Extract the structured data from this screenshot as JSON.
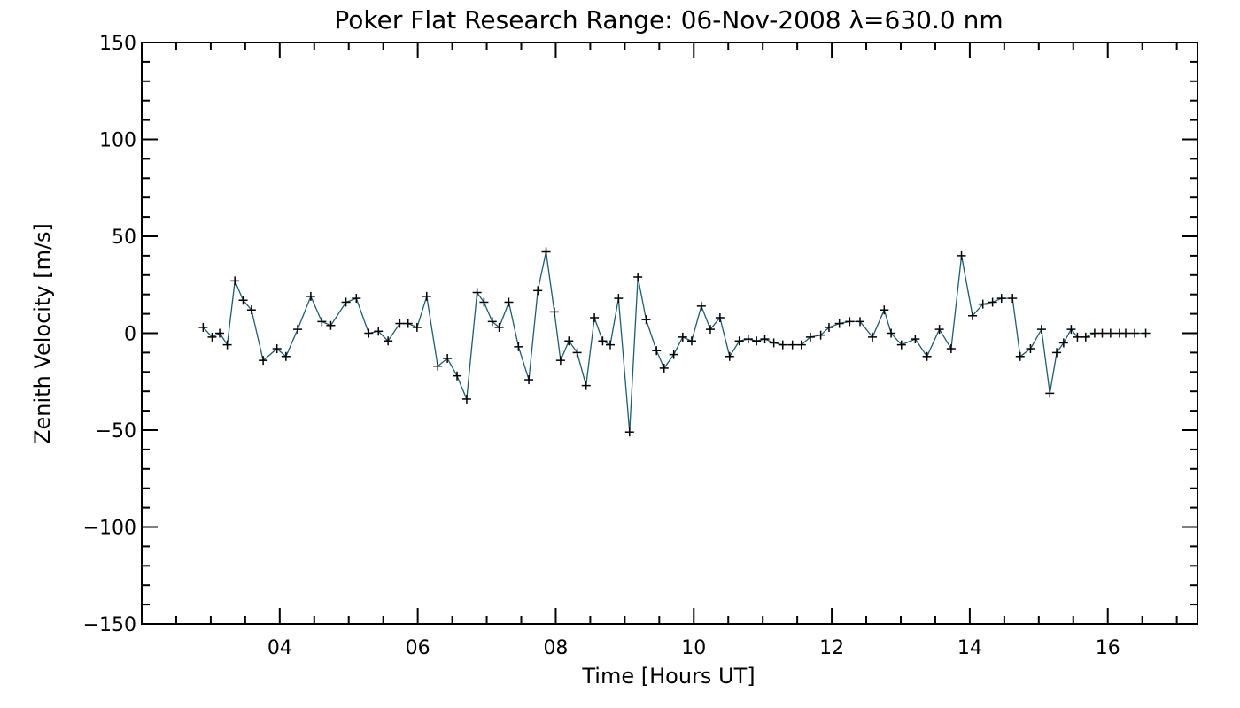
{
  "chart_data": {
    "type": "line",
    "title": "Poker Flat Research Range: 06-Nov-2008 λ=630.0 nm",
    "xlabel": "Time [Hours UT]",
    "ylabel": "Zenith Velocity [m/s]",
    "xlim": [
      2.0,
      17.3
    ],
    "ylim": [
      -150,
      150
    ],
    "x_ticks": [
      4,
      6,
      8,
      10,
      12,
      14,
      16
    ],
    "x_tick_labels": [
      "04",
      "06",
      "08",
      "10",
      "12",
      "14",
      "16"
    ],
    "y_ticks": [
      -150,
      -100,
      -50,
      0,
      50,
      100,
      150
    ],
    "y_tick_labels": [
      "−150",
      "−100",
      "−50",
      "0",
      "50",
      "100",
      "150"
    ],
    "grid": false,
    "marker": "plus",
    "colors": {
      "line": "#1f5c70",
      "marker": "#000000",
      "axes": "#000000"
    },
    "series": [
      {
        "x": [
          2.89,
          3.02,
          3.13,
          3.24,
          3.35,
          3.47,
          3.59,
          3.76,
          3.96,
          4.09,
          4.26,
          4.45,
          4.61,
          4.74,
          4.96,
          5.11,
          5.29,
          5.43,
          5.57,
          5.74,
          5.86,
          5.99,
          6.13,
          6.29,
          6.43,
          6.57,
          6.71,
          6.86,
          6.96,
          7.08,
          7.18,
          7.32,
          7.46,
          7.61,
          7.74,
          7.86,
          7.98,
          8.07,
          8.19,
          8.31,
          8.44,
          8.56,
          8.68,
          8.79,
          8.91,
          9.07,
          9.19,
          9.31,
          9.46,
          9.57,
          9.71,
          9.84,
          9.97,
          10.11,
          10.24,
          10.38,
          10.52,
          10.66,
          10.79,
          10.91,
          11.03,
          11.16,
          11.29,
          11.43,
          11.56,
          11.69,
          11.84,
          11.96,
          12.11,
          12.26,
          12.41,
          12.59,
          12.76,
          12.86,
          13.01,
          13.21,
          13.38,
          13.56,
          13.73,
          13.88,
          14.04,
          14.19,
          14.33,
          14.46,
          14.62,
          14.73,
          14.88,
          15.04,
          15.16,
          15.26,
          15.36,
          15.47,
          15.56,
          15.68,
          15.81,
          15.92,
          16.04,
          16.17,
          16.26,
          16.39,
          16.55
        ],
        "y": [
          3,
          -2,
          0,
          -6,
          27,
          17,
          12,
          -14,
          -8,
          -12,
          2,
          19,
          6,
          4,
          16,
          18,
          0,
          1,
          -4,
          5,
          5,
          3,
          19,
          -17,
          -13,
          -22,
          -34,
          21,
          16,
          6,
          3,
          16,
          -7,
          -24,
          22,
          42,
          11,
          -14,
          -4,
          -10,
          -27,
          8,
          -4,
          -6,
          18,
          -51,
          29,
          7,
          -9,
          -18,
          -11,
          -2,
          -4,
          14,
          2,
          8,
          -12,
          -4,
          -3,
          -4,
          -3,
          -5,
          -6,
          -6,
          -6,
          -2,
          -1,
          3,
          5,
          6,
          6,
          -2,
          12,
          0,
          -6,
          -3,
          -12,
          2,
          -8,
          40,
          9,
          15,
          16,
          18,
          18,
          -12,
          -8,
          2,
          -31,
          -10,
          -5,
          2,
          -2,
          -2,
          0,
          0,
          0,
          0,
          0,
          0,
          0
        ]
      }
    ]
  }
}
